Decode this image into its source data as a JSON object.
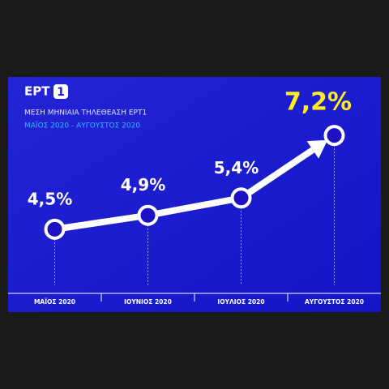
{
  "logo": {
    "text": "ΕΡΤ",
    "number": "1"
  },
  "chart_data": {
    "type": "line",
    "title": "ΜΕΣΗ ΜΗΝΙΑΙΑ ΤΗΛΕΘΕΑΣΗ ΕΡΤ1",
    "subtitle": "ΜΑΪΟΣ 2020 - ΑΥΓΟΥΣΤΟΣ 2020",
    "categories": [
      "ΜΑΪΟΣ 2020",
      "ΙΟΥΝΙΟΣ 2020",
      "ΙΟΥΛΙΟΣ 2020",
      "ΑΥΓΟΥΣΤΟΣ 2020"
    ],
    "values": [
      4.5,
      4.9,
      5.4,
      7.2
    ],
    "value_labels": [
      "4,5%",
      "4,9%",
      "5,4%",
      "7,2%"
    ],
    "color": "#ffffff",
    "highlight_color": "#ffee1a",
    "ylim": [
      2.7,
      8.3
    ]
  }
}
